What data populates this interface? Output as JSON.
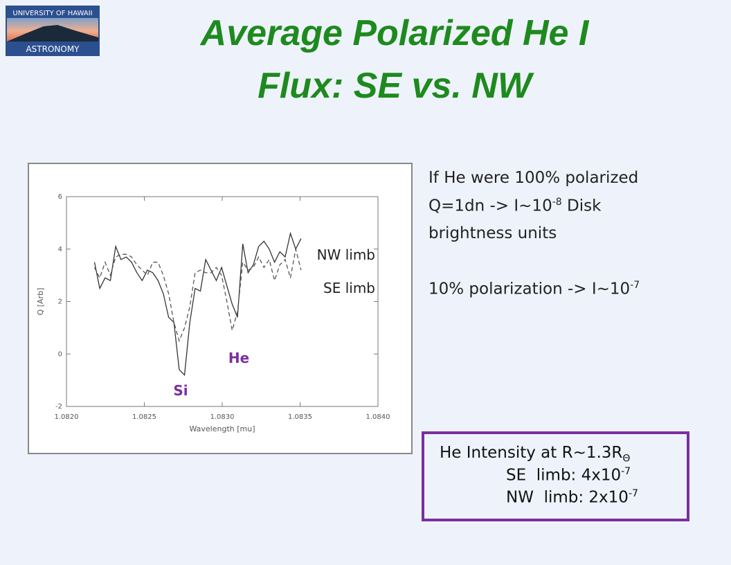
{
  "logo": {
    "top": "UNIVERSITY OF HAWAII",
    "bottom": "ASTRONOMY"
  },
  "title": [
    "Average Polarized He I",
    "Flux: SE vs. NW"
  ],
  "notes": {
    "line1": "If He were 100% polarized",
    "line2": {
      "text": "Q=1dn -> I~10",
      "sup": "-8",
      "tail": " Disk"
    },
    "line3": "brightness units",
    "line4": {
      "text": "10% polarization -> I~10",
      "sup": "-7"
    }
  },
  "box": {
    "line1": {
      "text": "He Intensity at R~1.3R",
      "sub": "Θ"
    },
    "line2": {
      "text": "SE  limb: 4x10",
      "sup": "-7"
    },
    "line3": {
      "text": "NW  limb: 2x10",
      "sup": "-7"
    }
  },
  "chart_data": {
    "type": "line",
    "x_label": "Wavelength [mu]",
    "y_label": "Q [Arb]",
    "annotations": [
      "Si",
      "He"
    ],
    "annotation_color": "#7b2fa0",
    "x": [
      1.08218,
      1.082214,
      1.082248,
      1.082282,
      1.082316,
      1.08235,
      1.082384,
      1.082418,
      1.082452,
      1.082486,
      1.08252,
      1.082554,
      1.082588,
      1.082622,
      1.082656,
      1.08269,
      1.082724,
      1.082758,
      1.082792,
      1.082826,
      1.08286,
      1.082894,
      1.082928,
      1.082962,
      1.082996,
      1.08303,
      1.083064,
      1.083098,
      1.083132,
      1.083166,
      1.0832,
      1.083234,
      1.083268,
      1.083302,
      1.083336,
      1.08337,
      1.083404,
      1.083438,
      1.083472,
      1.083506
    ],
    "series": [
      {
        "name": "NW limb",
        "color": "#333333",
        "dashed": false,
        "values": [
          3.5,
          2.5,
          2.9,
          2.8,
          4.1,
          3.6,
          3.7,
          3.5,
          3.1,
          2.8,
          3.2,
          3.1,
          2.8,
          2.3,
          1.4,
          1.2,
          -0.6,
          -0.8,
          1.2,
          2.5,
          2.4,
          3.6,
          3.2,
          2.8,
          3.3,
          2.6,
          1.9,
          1.4,
          4.2,
          3.1,
          3.4,
          4.1,
          4.3,
          4.0,
          3.5,
          3.9,
          3.7,
          4.6,
          4.0,
          4.4
        ]
      },
      {
        "name": "SE limb",
        "color": "#555555",
        "dashed": true,
        "values": [
          3.3,
          2.9,
          3.5,
          3.0,
          3.7,
          3.8,
          3.8,
          3.7,
          3.4,
          3.2,
          3.0,
          3.5,
          3.5,
          3.0,
          2.3,
          1.2,
          0.5,
          1.0,
          1.8,
          3.1,
          3.2,
          3.1,
          3.1,
          3.3,
          3.0,
          2.0,
          0.9,
          1.6,
          3.5,
          3.2,
          3.3,
          3.7,
          3.3,
          3.6,
          2.8,
          3.4,
          3.6,
          2.9,
          4.0,
          3.2
        ]
      }
    ],
    "xlim": [
      1.082,
      1.084
    ],
    "xticks": [
      {
        "value": 1.082,
        "label": "1.0820"
      },
      1.0825,
      {
        "value": 1.083,
        "label": "1.0830"
      },
      1.0835,
      {
        "value": 1.084,
        "label": "1.0840"
      }
    ],
    "ylim": [
      -2,
      6
    ],
    "yticks": [
      -2,
      0,
      2,
      4,
      6
    ]
  }
}
